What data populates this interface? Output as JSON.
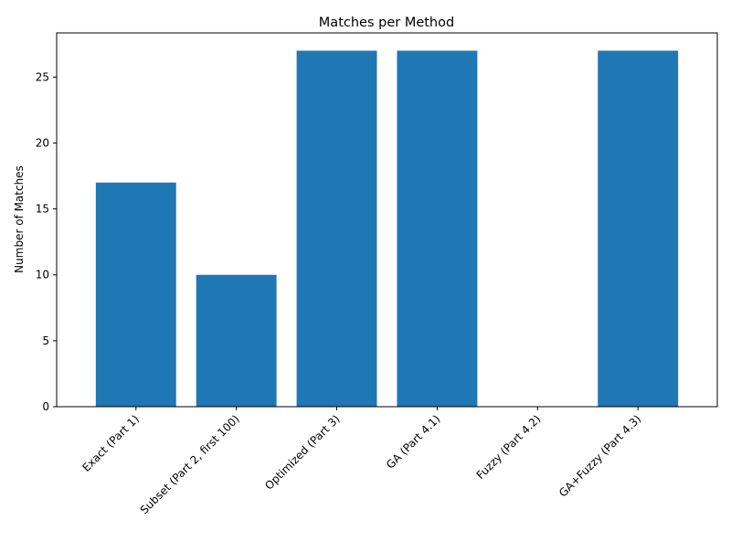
{
  "chart_data": {
    "type": "bar",
    "title": "Matches per Method",
    "xlabel": "",
    "ylabel": "Number of Matches",
    "categories": [
      "Exact (Part 1)",
      "Subset (Part 2, first 100)",
      "Optimized (Part 3)",
      "GA (Part 4.1)",
      "Fuzzy (Part 4.2)",
      "GA+Fuzzy (Part 4.3)"
    ],
    "values": [
      17,
      10,
      27,
      27,
      0,
      27
    ],
    "ylim": [
      0,
      28.35
    ],
    "yticks": [
      0,
      5,
      10,
      15,
      20,
      25
    ],
    "grid": false,
    "bar_color": "#1f77b4"
  }
}
